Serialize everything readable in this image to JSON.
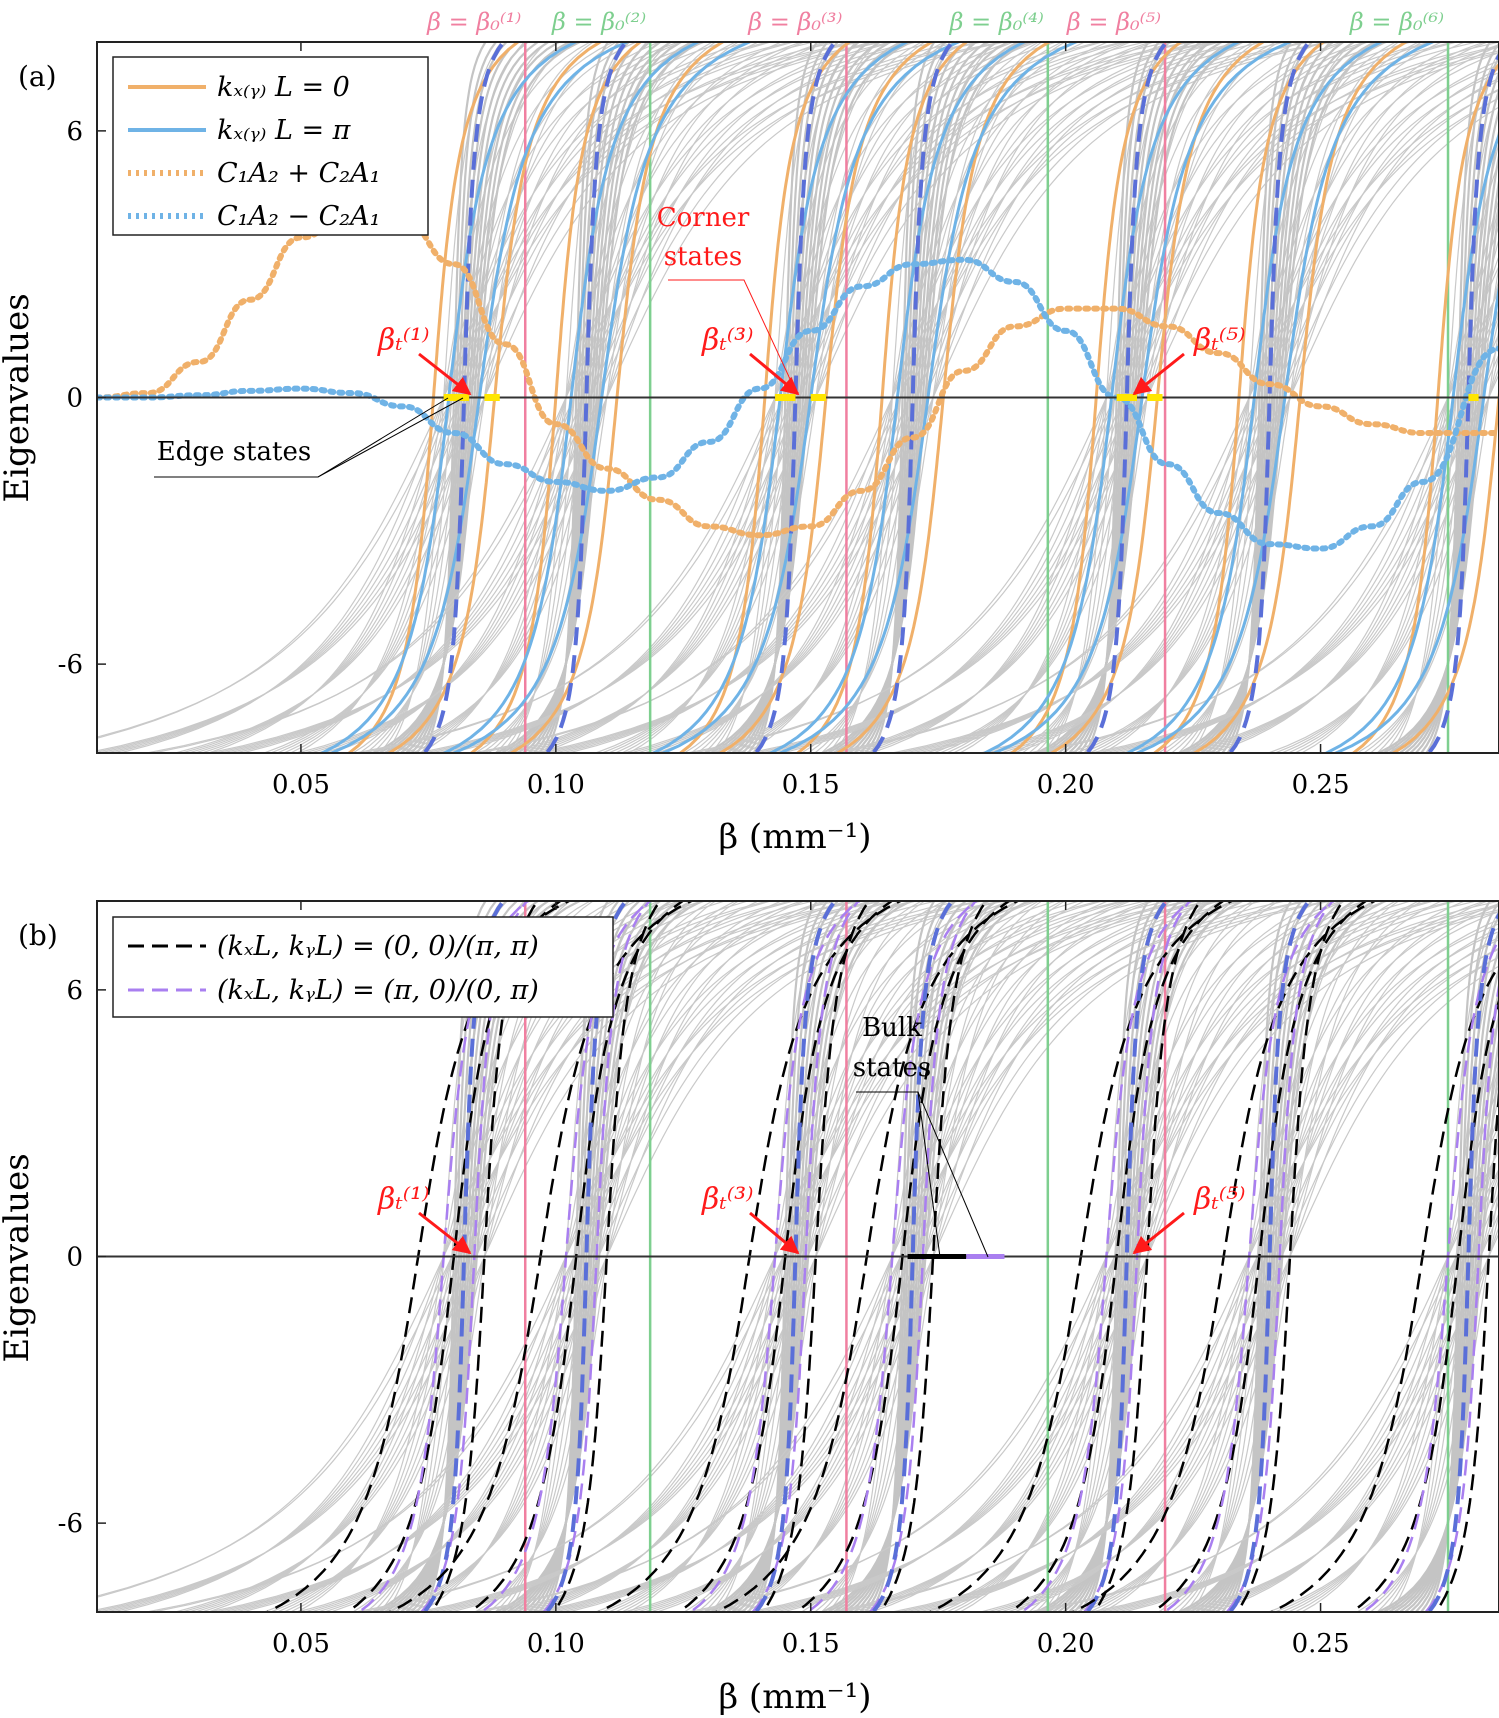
{
  "chart_data": [
    {
      "type": "line",
      "panel_label": "(a)",
      "xlabel": "β (mm⁻¹)",
      "ylabel": "Eigenvalues",
      "xlim": [
        0.01,
        0.285
      ],
      "ylim": [
        -8,
        8
      ],
      "xticks": [
        0.05,
        0.1,
        0.15,
        0.2,
        0.25
      ],
      "xtick_labels": [
        "0.05",
        "0.10",
        "0.15",
        "0.20",
        "0.25"
      ],
      "yticks": [
        6,
        0,
        -6
      ],
      "ytick_labels": [
        "6",
        "0",
        "-6"
      ],
      "legend": [
        {
          "label": "kₓ₍ᵧ₎ L = 0",
          "color": "#f0b06a",
          "style": "solid"
        },
        {
          "label": "kₓ₍ᵧ₎ L = π",
          "color": "#6fb3e6",
          "style": "solid"
        },
        {
          "label": "C₁A₂ + C₂A₁",
          "color": "#f0b06a",
          "style": "dotted"
        },
        {
          "label": "C₁A₂ − C₂A₁",
          "color": "#6fb3e6",
          "style": "dotted"
        }
      ],
      "vertical_lines": [
        {
          "label": "β = β₀⁽¹⁾",
          "x": 0.094,
          "color": "#f07fa0"
        },
        {
          "label": "β = β₀⁽²⁾",
          "x": 0.1185,
          "color": "#7ecf8f"
        },
        {
          "label": "β = β₀⁽³⁾",
          "x": 0.157,
          "color": "#f07fa0"
        },
        {
          "label": "β = β₀⁽⁴⁾",
          "x": 0.1965,
          "color": "#7ecf8f"
        },
        {
          "label": "β = β₀⁽⁵⁾",
          "x": 0.2195,
          "color": "#f07fa0"
        },
        {
          "label": "β = β₀⁽⁶⁾",
          "x": 0.275,
          "color": "#7ecf8f"
        }
      ],
      "band_centers": [
        0.082,
        0.106,
        0.147,
        0.17,
        0.212,
        0.24,
        0.279
      ],
      "series": [
        {
          "name": "C₁A₂ + C₂A₁",
          "x": [
            0.01,
            0.02,
            0.03,
            0.04,
            0.05,
            0.06,
            0.07,
            0.08,
            0.09,
            0.1,
            0.11,
            0.12,
            0.13,
            0.14,
            0.15,
            0.16,
            0.17,
            0.18,
            0.19,
            0.2,
            0.21,
            0.22,
            0.23,
            0.24,
            0.25,
            0.26,
            0.27,
            0.285
          ],
          "y": [
            0,
            0.1,
            0.8,
            2.2,
            3.6,
            4.2,
            4.0,
            3.0,
            1.2,
            -0.6,
            -1.6,
            -2.3,
            -2.9,
            -3.1,
            -2.9,
            -2.1,
            -0.9,
            0.6,
            1.6,
            2.0,
            2.0,
            1.6,
            1.0,
            0.3,
            -0.2,
            -0.6,
            -0.8,
            -0.8
          ]
        },
        {
          "name": "C₁A₂ − C₂A₁",
          "x": [
            0.01,
            0.02,
            0.03,
            0.04,
            0.05,
            0.06,
            0.07,
            0.08,
            0.09,
            0.1,
            0.11,
            0.12,
            0.13,
            0.14,
            0.15,
            0.16,
            0.17,
            0.18,
            0.19,
            0.2,
            0.21,
            0.22,
            0.23,
            0.24,
            0.25,
            0.26,
            0.27,
            0.285
          ],
          "y": [
            0,
            0,
            0.05,
            0.15,
            0.2,
            0.1,
            -0.2,
            -0.8,
            -1.5,
            -1.9,
            -2.1,
            -1.8,
            -1.0,
            0.2,
            1.5,
            2.5,
            3.0,
            3.1,
            2.6,
            1.5,
            0.0,
            -1.5,
            -2.6,
            -3.3,
            -3.4,
            -2.9,
            -1.9,
            1.1
          ]
        }
      ],
      "annotations": [
        {
          "text": "βₜ⁽¹⁾",
          "color": "#ff0000",
          "x": 0.084,
          "y": 0
        },
        {
          "text": "βₜ⁽³⁾",
          "color": "#ff0000",
          "x": 0.149,
          "y": 0
        },
        {
          "text": "βₜ⁽⁵⁾",
          "color": "#ff0000",
          "x": 0.213,
          "y": 0
        },
        {
          "text": "Corner states",
          "lines": [
            "Corner",
            "states"
          ],
          "color": "#ff0000"
        },
        {
          "text": "Edge states",
          "color": "#000000"
        }
      ]
    },
    {
      "type": "line",
      "panel_label": "(b)",
      "xlabel": "β (mm⁻¹)",
      "ylabel": "Eigenvalues",
      "xlim": [
        0.01,
        0.285
      ],
      "ylim": [
        -8,
        8
      ],
      "xticks": [
        0.05,
        0.1,
        0.15,
        0.2,
        0.25
      ],
      "xtick_labels": [
        "0.05",
        "0.10",
        "0.15",
        "0.20",
        "0.25"
      ],
      "yticks": [
        6,
        0,
        -6
      ],
      "ytick_labels": [
        "6",
        "0",
        "-6"
      ],
      "legend": [
        {
          "label": "(kₓL, kᵧL) = (0, 0)/(π, π)",
          "color": "#000000",
          "style": "dashed"
        },
        {
          "label": "(kₓL, kᵧL) = (π, 0)/(0, π)",
          "color": "#a97ff0",
          "style": "dashed"
        }
      ],
      "vertical_lines": [
        {
          "x": 0.094,
          "color": "#f07fa0"
        },
        {
          "x": 0.1185,
          "color": "#7ecf8f"
        },
        {
          "x": 0.157,
          "color": "#f07fa0"
        },
        {
          "x": 0.1965,
          "color": "#7ecf8f"
        },
        {
          "x": 0.2195,
          "color": "#f07fa0"
        },
        {
          "x": 0.275,
          "color": "#7ecf8f"
        }
      ],
      "band_centers": [
        0.082,
        0.106,
        0.147,
        0.17,
        0.212,
        0.24,
        0.279
      ],
      "annotations": [
        {
          "text": "βₜ⁽¹⁾",
          "color": "#ff0000",
          "x": 0.084,
          "y": 0
        },
        {
          "text": "βₜ⁽³⁾",
          "color": "#ff0000",
          "x": 0.149,
          "y": 0
        },
        {
          "text": "βₜ⁽⁵⁾",
          "color": "#ff0000",
          "x": 0.213,
          "y": 0
        },
        {
          "text": "Bulk states",
          "lines": [
            "Bulk",
            "states"
          ],
          "color": "#000000"
        }
      ]
    }
  ]
}
